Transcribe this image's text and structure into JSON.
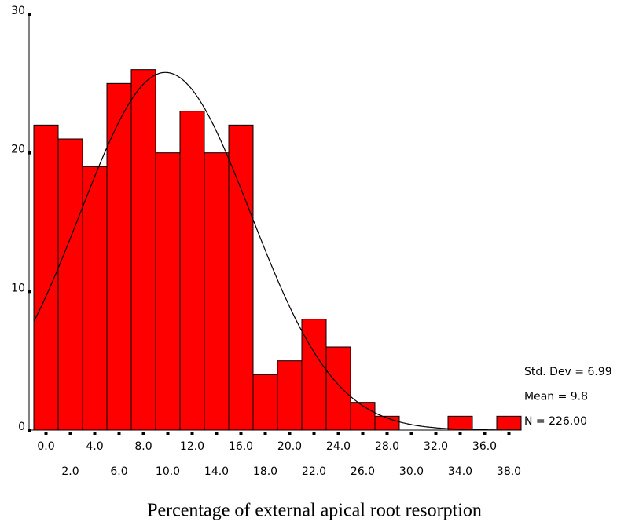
{
  "chart_data": {
    "type": "histogram",
    "x_label": "Percentage of external apical root resorption",
    "bins": [
      -1,
      1,
      3,
      5,
      7,
      9,
      11,
      13,
      15,
      17,
      19,
      21,
      23,
      25,
      27,
      29,
      31,
      33,
      35,
      37,
      39
    ],
    "values": [
      22,
      21,
      19,
      25,
      26,
      20,
      23,
      20,
      22,
      4,
      5,
      8,
      6,
      2,
      1,
      0,
      0,
      1,
      0,
      1
    ],
    "color": "#ff0000",
    "xlim": [
      -1,
      39
    ],
    "xticks": [
      {
        "value": 0,
        "label": "0.0"
      },
      {
        "value": 2,
        "label": "2.0"
      },
      {
        "value": 4,
        "label": "4.0"
      },
      {
        "value": 6,
        "label": "6.0"
      },
      {
        "value": 8,
        "label": "8.0"
      },
      {
        "value": 10,
        "label": "10.0"
      },
      {
        "value": 12,
        "label": "12.0"
      },
      {
        "value": 14,
        "label": "14.0"
      },
      {
        "value": 16,
        "label": "16.0"
      },
      {
        "value": 18,
        "label": "18.0"
      },
      {
        "value": 20,
        "label": "20.0"
      },
      {
        "value": 22,
        "label": "22.0"
      },
      {
        "value": 24,
        "label": "24.0"
      },
      {
        "value": 26,
        "label": "26.0"
      },
      {
        "value": 28,
        "label": "28.0"
      },
      {
        "value": 30,
        "label": "30.0"
      },
      {
        "value": 32,
        "label": "32.0"
      },
      {
        "value": 34,
        "label": "34.0"
      },
      {
        "value": 36,
        "label": "36.0"
      },
      {
        "value": 38,
        "label": "38.0"
      }
    ],
    "ylim": [
      0,
      30
    ],
    "yticks": [
      0,
      10,
      20,
      30
    ],
    "normal_curve": {
      "std_dev": 6.99,
      "mean": 9.8,
      "n": 226,
      "labels": [
        "Std. Dev = 6.99",
        "Mean = 9.8",
        "N = 226.00"
      ]
    }
  }
}
